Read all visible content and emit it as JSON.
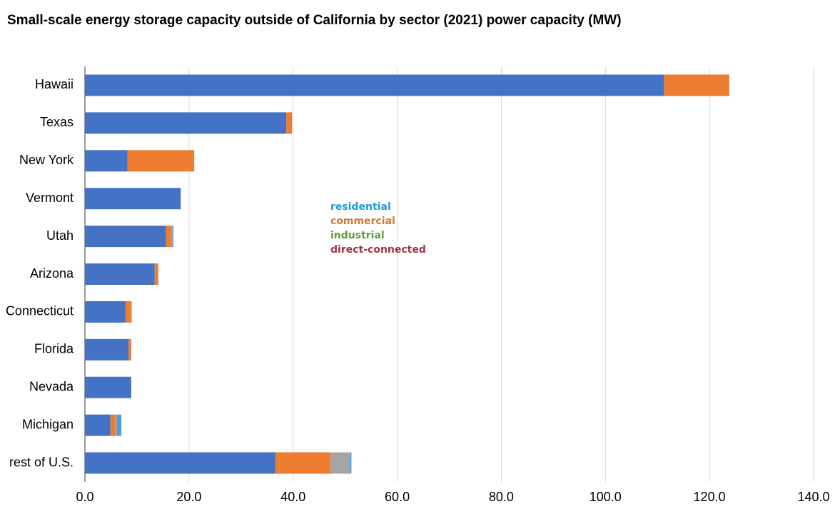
{
  "chart_data": {
    "type": "stacked-barh",
    "title": "Small-scale energy storage capacity outside of California by sector (2021) power capacity (MW)",
    "categories": [
      "Hawaii",
      "Texas",
      "New York",
      "Vermont",
      "Utah",
      "Arizona",
      "Connecticut",
      "Florida",
      "Nevada",
      "Michigan",
      "rest of U.S."
    ],
    "series": [
      {
        "name": "residential",
        "color": "#4472c4",
        "label_color": "#1f9bd7",
        "values": [
          111.3,
          38.7,
          8.2,
          18.4,
          15.6,
          13.4,
          7.8,
          8.4,
          8.9,
          4.9,
          36.6
        ]
      },
      {
        "name": "commercial",
        "color": "#ed7d31",
        "label_color": "#d07a30",
        "values": [
          12.5,
          1.1,
          12.8,
          0,
          1.0,
          0.7,
          1.1,
          0.5,
          0,
          0.9,
          10.6
        ]
      },
      {
        "name": "industrial",
        "color": "#a5a5a5",
        "label_color": "#5b9b3a",
        "values": [
          0,
          0,
          0,
          0,
          0.2,
          0,
          0.1,
          0,
          0,
          0.3,
          3.7
        ]
      },
      {
        "name": "direct-connected",
        "color": "#5b9bd5",
        "label_color": "#a3343e",
        "values": [
          0,
          0,
          0,
          0,
          0.2,
          0,
          0,
          0,
          0,
          0.9,
          0.3
        ]
      }
    ],
    "xlim": [
      0,
      140
    ],
    "xticks": [
      {
        "value": 0,
        "label": "0.0"
      },
      {
        "value": 20,
        "label": "20.0"
      },
      {
        "value": 40,
        "label": "40.0"
      },
      {
        "value": 60,
        "label": "60.0"
      },
      {
        "value": 80,
        "label": "80.0"
      },
      {
        "value": 100,
        "label": "100.0"
      },
      {
        "value": 120,
        "label": "120.0"
      },
      {
        "value": 140,
        "label": "140.0"
      }
    ],
    "grid": true
  }
}
